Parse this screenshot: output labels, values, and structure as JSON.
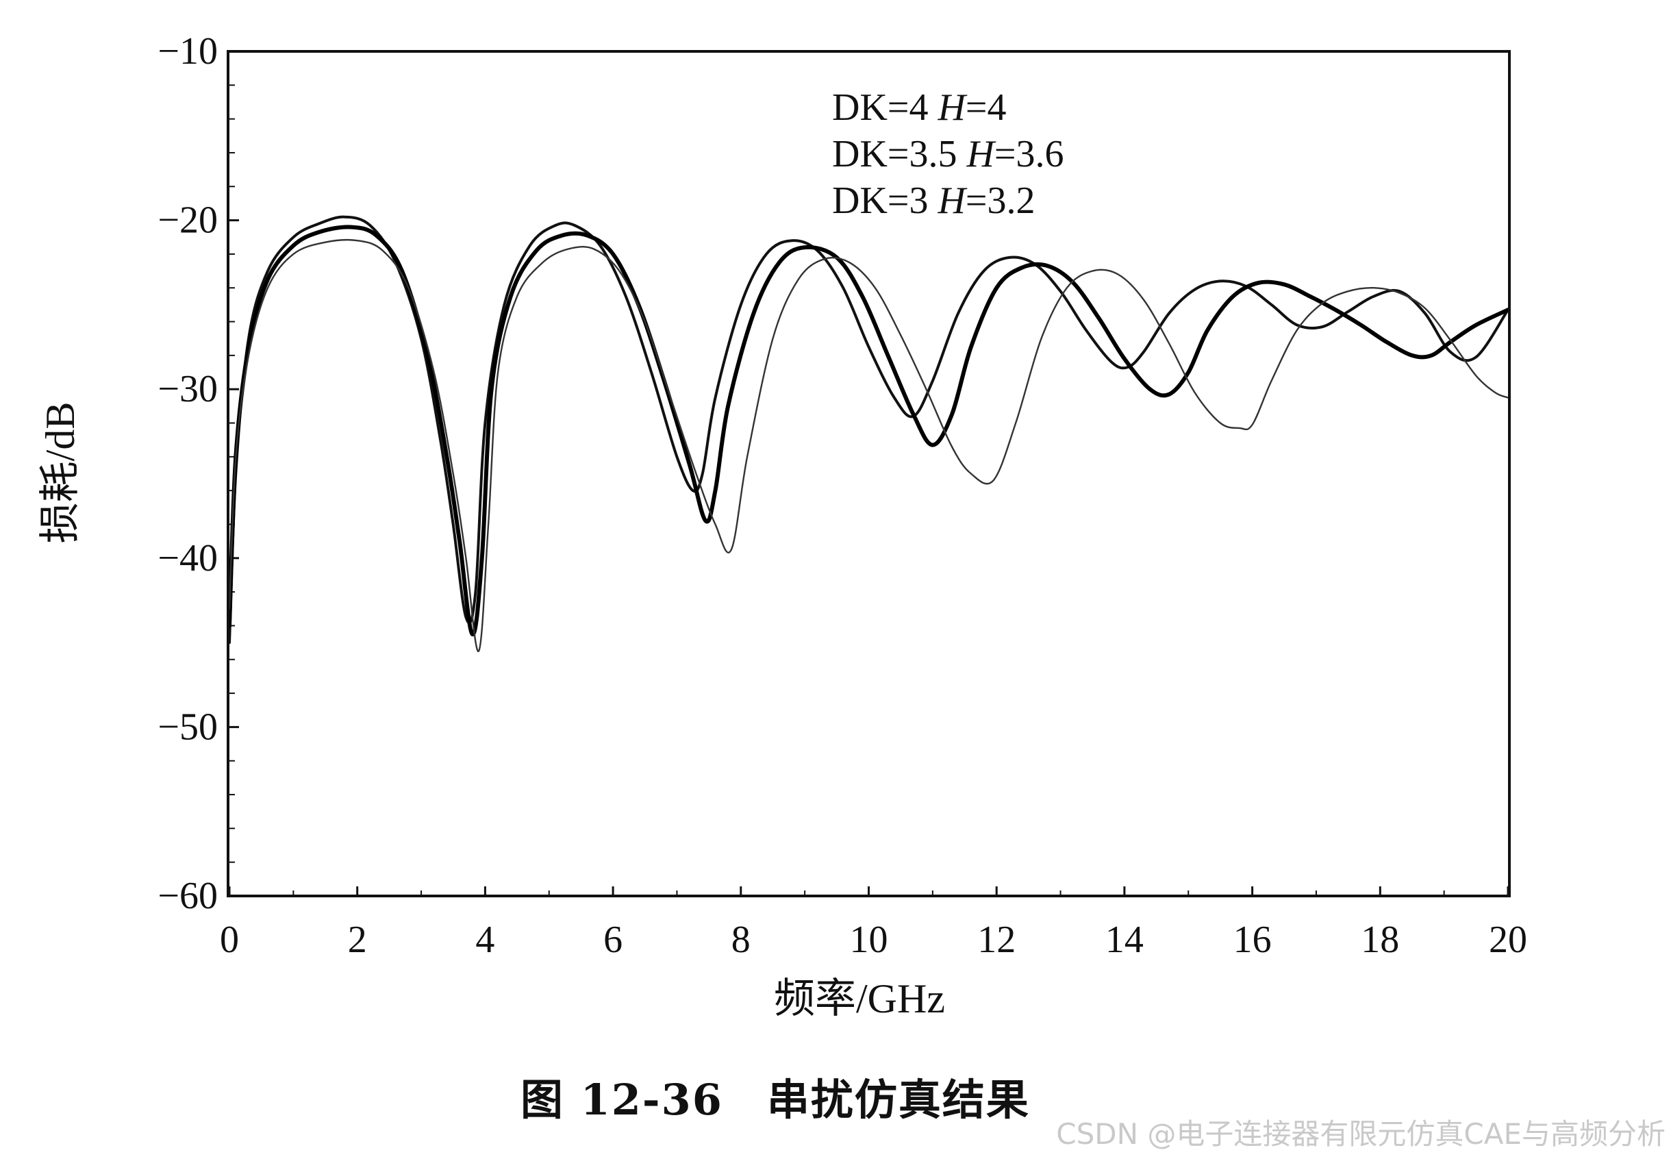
{
  "chart_data": {
    "type": "line",
    "xlabel": "频率/GHz",
    "ylabel": "损耗/dB",
    "xlim": [
      0,
      20
    ],
    "ylim": [
      -60,
      -10
    ],
    "xticks": [
      0,
      2,
      4,
      6,
      8,
      10,
      12,
      14,
      16,
      18,
      20
    ],
    "yticks": [
      -10,
      -20,
      -30,
      -40,
      -50,
      -60
    ],
    "xtick_labels": [
      "0",
      "2",
      "4",
      "6",
      "8",
      "10",
      "12",
      "14",
      "16",
      "18",
      "20"
    ],
    "ytick_labels": [
      "−10",
      "−20",
      "−30",
      "−40",
      "−50",
      "−60"
    ],
    "grid": false,
    "legend_position": "top-center",
    "legend_entries": [
      {
        "dk": "DK=4",
        "h_var": "H",
        "h_val": "=4"
      },
      {
        "dk": "DK=3.5",
        "h_var": "H",
        "h_val": "=3.6"
      },
      {
        "dk": "DK=3",
        "h_var": "H",
        "h_val": "=3.2"
      }
    ],
    "series": [
      {
        "color": "#111111",
        "x": [
          0,
          0.1,
          0.3,
          0.6,
          1.0,
          1.4,
          1.8,
          2.2,
          2.6,
          3.0,
          3.3,
          3.5,
          3.7,
          3.85,
          4.0,
          4.3,
          4.7,
          5.1,
          5.4,
          5.8,
          6.2,
          6.6,
          7.0,
          7.25,
          7.4,
          7.6,
          8.0,
          8.4,
          8.8,
          9.2,
          9.6,
          10.0,
          10.4,
          10.7,
          11.0,
          11.4,
          11.8,
          12.2,
          12.6,
          13.0,
          13.4,
          13.8,
          14.05,
          14.3,
          14.7,
          15.1,
          15.5,
          15.9,
          16.3,
          16.7,
          17.1,
          17.5,
          17.9,
          18.3,
          18.7,
          19.1,
          19.5,
          20.0
        ],
        "y": [
          -45,
          -35,
          -27,
          -23,
          -21,
          -20.2,
          -19.8,
          -20.3,
          -22.5,
          -27,
          -33,
          -38,
          -43.5,
          -42,
          -32,
          -25,
          -21.5,
          -20.3,
          -20.3,
          -21.5,
          -24.5,
          -29,
          -34,
          -36,
          -35,
          -30.5,
          -25,
          -22,
          -21.2,
          -21.8,
          -24,
          -27.5,
          -30.5,
          -31.6,
          -29.5,
          -25.5,
          -23,
          -22.2,
          -22.6,
          -24.2,
          -26.5,
          -28.4,
          -28.7,
          -27.8,
          -25.5,
          -24.1,
          -23.6,
          -23.9,
          -25,
          -26.2,
          -26.3,
          -25.4,
          -24.5,
          -24.2,
          -25.5,
          -27.8,
          -28.1,
          -25.3
        ]
      },
      {
        "color": "#000000",
        "x": [
          0,
          0.1,
          0.3,
          0.6,
          1.0,
          1.4,
          1.9,
          2.3,
          2.7,
          3.1,
          3.4,
          3.6,
          3.8,
          3.95,
          4.1,
          4.4,
          4.8,
          5.2,
          5.6,
          6.0,
          6.4,
          6.8,
          7.2,
          7.45,
          7.6,
          7.8,
          8.2,
          8.6,
          9.0,
          9.5,
          9.9,
          10.3,
          10.7,
          11.0,
          11.3,
          11.6,
          12.0,
          12.4,
          12.8,
          13.2,
          13.6,
          14.0,
          14.4,
          14.7,
          15.0,
          15.3,
          15.7,
          16.1,
          16.5,
          16.9,
          17.3,
          17.7,
          18.1,
          18.5,
          18.8,
          19.1,
          19.5,
          20.0
        ],
        "y": [
          -44,
          -34,
          -27.5,
          -23.5,
          -21.5,
          -20.7,
          -20.4,
          -20.9,
          -23,
          -28,
          -34,
          -39,
          -44.5,
          -40,
          -30,
          -24.5,
          -21.8,
          -20.9,
          -20.9,
          -22,
          -25,
          -29.5,
          -34.5,
          -37.8,
          -36,
          -31,
          -25.5,
          -22.5,
          -21.6,
          -22.2,
          -24.5,
          -28,
          -31.5,
          -33.3,
          -31.5,
          -27.5,
          -24,
          -22.8,
          -22.7,
          -23.7,
          -25.8,
          -28.2,
          -30,
          -30.3,
          -29,
          -26.5,
          -24.5,
          -23.7,
          -23.8,
          -24.5,
          -25.3,
          -26.2,
          -27.2,
          -28,
          -28,
          -27.2,
          -26.2,
          -25.3
        ]
      },
      {
        "color": "#333333",
        "x": [
          0,
          0.1,
          0.3,
          0.6,
          1.0,
          1.5,
          2.0,
          2.4,
          2.8,
          3.2,
          3.5,
          3.7,
          3.9,
          4.05,
          4.2,
          4.5,
          4.9,
          5.3,
          5.7,
          6.1,
          6.5,
          6.9,
          7.3,
          7.6,
          7.85,
          8.1,
          8.5,
          8.9,
          9.3,
          9.7,
          10.1,
          10.5,
          10.9,
          11.3,
          11.6,
          11.95,
          12.3,
          12.7,
          13.1,
          13.5,
          13.9,
          14.3,
          14.7,
          15.1,
          15.5,
          15.8,
          16.0,
          16.3,
          16.7,
          17.1,
          17.5,
          17.9,
          18.3,
          18.7,
          19.1,
          19.5,
          19.8,
          20.0
        ],
        "y": [
          -43,
          -34,
          -28,
          -24,
          -22,
          -21.3,
          -21.2,
          -21.8,
          -24,
          -29,
          -35,
          -40,
          -45.5,
          -38,
          -29,
          -24.5,
          -22.5,
          -21.7,
          -21.7,
          -23,
          -26,
          -30.5,
          -35,
          -38,
          -39.5,
          -34,
          -27,
          -23.5,
          -22.3,
          -22.5,
          -24,
          -26.8,
          -30,
          -33.4,
          -35,
          -35.4,
          -32,
          -27,
          -24,
          -23,
          -23.2,
          -24.7,
          -27.3,
          -30.2,
          -32,
          -32.3,
          -32.1,
          -29.5,
          -26.5,
          -24.9,
          -24.2,
          -24,
          -24.3,
          -25.2,
          -27.1,
          -29.2,
          -30.2,
          -30.5
        ]
      }
    ]
  },
  "caption": "图 12-36　串扰仿真结果",
  "watermark": "CSDN @电子连接器有限元仿真CAE与高频分析"
}
